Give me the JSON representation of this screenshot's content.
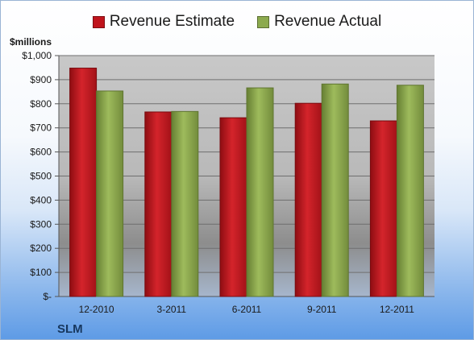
{
  "chart_data": {
    "type": "bar",
    "categories": [
      "12-2010",
      "3-2011",
      "6-2011",
      "9-2011",
      "12-2011"
    ],
    "series": [
      {
        "name": "Revenue Estimate",
        "values": [
          948,
          766,
          742,
          802,
          729
        ],
        "color": "#c0141c"
      },
      {
        "name": "Revenue Actual",
        "values": [
          853,
          768,
          866,
          882,
          877
        ],
        "color": "#8caa4e"
      }
    ],
    "title": "",
    "xlabel": "",
    "ylabel": "$millions",
    "ylim": [
      0,
      1000
    ],
    "yticks": [
      {
        "value": 0,
        "label": "$-"
      },
      {
        "value": 100,
        "label": "$100"
      },
      {
        "value": 200,
        "label": "$200"
      },
      {
        "value": 300,
        "label": "$300"
      },
      {
        "value": 400,
        "label": "$400"
      },
      {
        "value": 500,
        "label": "$500"
      },
      {
        "value": 600,
        "label": "$600"
      },
      {
        "value": 700,
        "label": "$700"
      },
      {
        "value": 800,
        "label": "$800"
      },
      {
        "value": 900,
        "label": "$900"
      },
      {
        "value": 1000,
        "label": "$1,000"
      }
    ],
    "grid": true,
    "legend_position": "top",
    "company": "SLM"
  }
}
